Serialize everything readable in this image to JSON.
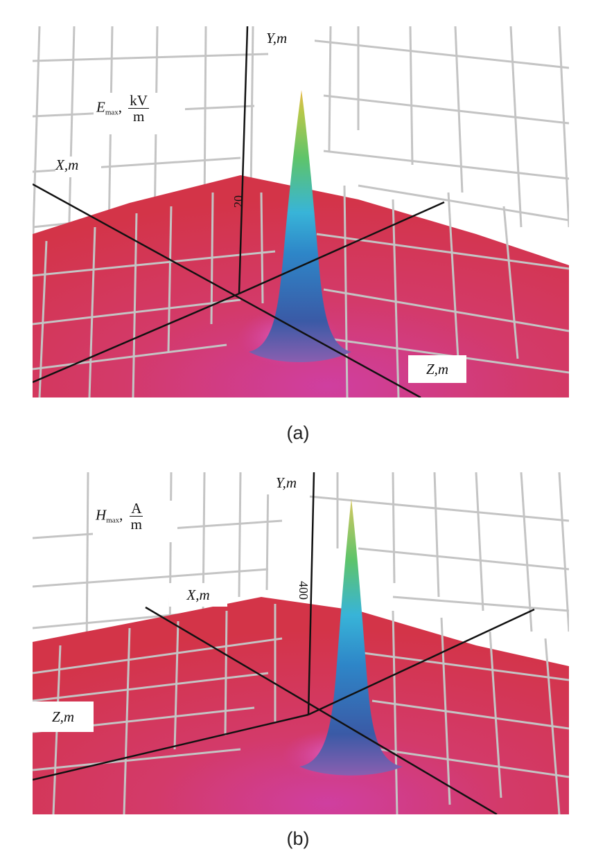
{
  "chart_data": [
    {
      "type": "surface3d",
      "panel": "(a)",
      "quantity": "E",
      "quantity_sub": "max",
      "unit_num": "kV",
      "unit_den": "m",
      "axes": {
        "x": "X,m",
        "y": "Y,m",
        "z": "Z,m"
      },
      "tick_label": "20",
      "caption": "(a)",
      "colors": {
        "floor": "#d33448",
        "floor_center": "#cf3fa0",
        "peak_mid": "#38b4d8",
        "peak_top": "#e8b84a",
        "grid": "#c4c4c4",
        "axis": "#111111"
      }
    },
    {
      "type": "surface3d",
      "panel": "(b)",
      "quantity": "H",
      "quantity_sub": "max",
      "unit_num": "A",
      "unit_den": "m",
      "axes": {
        "x": "X,m",
        "y": "Y,m",
        "z": "Z,m"
      },
      "tick_label": "400",
      "caption": "(b)",
      "colors": {
        "floor": "#d33448",
        "floor_center": "#cf3fa0",
        "peak_mid": "#38b4d8",
        "peak_top": "#e8b84a",
        "grid": "#c4c4c4",
        "axis": "#111111"
      }
    }
  ]
}
